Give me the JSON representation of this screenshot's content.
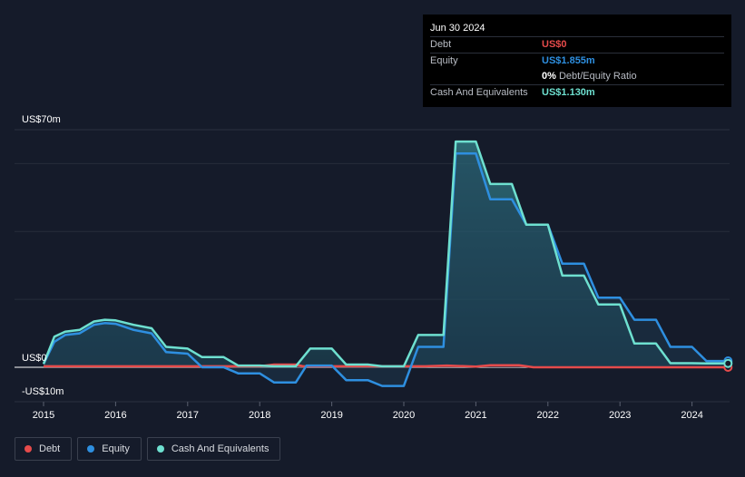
{
  "tooltip": {
    "date": "Jun 30 2024",
    "debt_label": "Debt",
    "debt_value": "US$0",
    "equity_label": "Equity",
    "equity_value": "US$1.855m",
    "ratio_value": "0%",
    "ratio_label": "Debt/Equity Ratio",
    "cash_label": "Cash And Equivalents",
    "cash_value": "US$1.130m"
  },
  "legend": {
    "debt": "Debt",
    "equity": "Equity",
    "cash": "Cash And Equivalents"
  },
  "colors": {
    "debt": "#e64b4b",
    "equity": "#2e8fe0",
    "cash": "#6ee0d0",
    "background": "#151b2a"
  },
  "chart_data": {
    "type": "area",
    "y_top_label": "US$70m",
    "y_zero_label": "US$0",
    "y_bottom_label": "-US$10m",
    "ylim": [
      -10,
      70
    ],
    "xlim": [
      2014.85,
      2024.5
    ],
    "x_ticks": [
      "2015",
      "2016",
      "2017",
      "2018",
      "2019",
      "2020",
      "2021",
      "2022",
      "2023",
      "2024"
    ],
    "gridlines": [
      0,
      20,
      40,
      60
    ],
    "series": [
      {
        "name": "Debt",
        "key": "debt",
        "points": [
          [
            2015.0,
            0.3
          ],
          [
            2018.0,
            0.3
          ],
          [
            2018.2,
            0.8
          ],
          [
            2018.5,
            0.8
          ],
          [
            2018.6,
            0.3
          ],
          [
            2020.3,
            0.3
          ],
          [
            2020.6,
            0.5
          ],
          [
            2021.0,
            0.2
          ],
          [
            2021.2,
            0.6
          ],
          [
            2021.6,
            0.6
          ],
          [
            2021.8,
            0.0
          ],
          [
            2024.5,
            0.0
          ]
        ]
      },
      {
        "name": "Equity",
        "key": "equity",
        "points": [
          [
            2015.0,
            1.0
          ],
          [
            2015.15,
            7.5
          ],
          [
            2015.3,
            9.5
          ],
          [
            2015.5,
            10.0
          ],
          [
            2015.7,
            12.5
          ],
          [
            2015.85,
            13.0
          ],
          [
            2016.0,
            12.8
          ],
          [
            2016.25,
            11.0
          ],
          [
            2016.5,
            10.0
          ],
          [
            2016.7,
            4.5
          ],
          [
            2017.0,
            4.0
          ],
          [
            2017.2,
            0.0
          ],
          [
            2017.5,
            0.0
          ],
          [
            2017.7,
            -1.8
          ],
          [
            2018.0,
            -1.8
          ],
          [
            2018.2,
            -4.5
          ],
          [
            2018.5,
            -4.5
          ],
          [
            2018.65,
            0.5
          ],
          [
            2019.0,
            0.5
          ],
          [
            2019.2,
            -3.8
          ],
          [
            2019.5,
            -3.8
          ],
          [
            2019.7,
            -5.5
          ],
          [
            2020.0,
            -5.5
          ],
          [
            2020.2,
            6.0
          ],
          [
            2020.55,
            6.0
          ],
          [
            2020.72,
            63.0
          ],
          [
            2021.0,
            63.0
          ],
          [
            2021.2,
            49.5
          ],
          [
            2021.5,
            49.5
          ],
          [
            2021.7,
            42.0
          ],
          [
            2022.0,
            42.0
          ],
          [
            2022.2,
            30.5
          ],
          [
            2022.5,
            30.5
          ],
          [
            2022.7,
            20.5
          ],
          [
            2023.0,
            20.5
          ],
          [
            2023.2,
            14.0
          ],
          [
            2023.5,
            14.0
          ],
          [
            2023.7,
            6.0
          ],
          [
            2024.0,
            6.0
          ],
          [
            2024.2,
            1.855
          ],
          [
            2024.5,
            1.855
          ]
        ]
      },
      {
        "name": "Cash And Equivalents",
        "key": "cash",
        "points": [
          [
            2015.0,
            1.0
          ],
          [
            2015.15,
            9.0
          ],
          [
            2015.3,
            10.5
          ],
          [
            2015.5,
            11.0
          ],
          [
            2015.7,
            13.5
          ],
          [
            2015.85,
            14.0
          ],
          [
            2016.0,
            13.8
          ],
          [
            2016.25,
            12.5
          ],
          [
            2016.5,
            11.5
          ],
          [
            2016.7,
            6.0
          ],
          [
            2017.0,
            5.5
          ],
          [
            2017.2,
            3.0
          ],
          [
            2017.5,
            3.0
          ],
          [
            2017.7,
            0.5
          ],
          [
            2018.0,
            0.5
          ],
          [
            2018.2,
            0.3
          ],
          [
            2018.5,
            0.3
          ],
          [
            2018.7,
            5.5
          ],
          [
            2019.0,
            5.5
          ],
          [
            2019.2,
            0.8
          ],
          [
            2019.5,
            0.8
          ],
          [
            2019.7,
            0.3
          ],
          [
            2020.0,
            0.3
          ],
          [
            2020.2,
            9.5
          ],
          [
            2020.55,
            9.5
          ],
          [
            2020.72,
            66.5
          ],
          [
            2021.0,
            66.5
          ],
          [
            2021.2,
            54.0
          ],
          [
            2021.5,
            54.0
          ],
          [
            2021.7,
            42.0
          ],
          [
            2022.0,
            42.0
          ],
          [
            2022.2,
            27.0
          ],
          [
            2022.5,
            27.0
          ],
          [
            2022.7,
            18.5
          ],
          [
            2023.0,
            18.5
          ],
          [
            2023.2,
            7.0
          ],
          [
            2023.5,
            7.0
          ],
          [
            2023.7,
            1.2
          ],
          [
            2024.0,
            1.2
          ],
          [
            2024.2,
            1.13
          ],
          [
            2024.5,
            1.13
          ]
        ]
      }
    ]
  }
}
